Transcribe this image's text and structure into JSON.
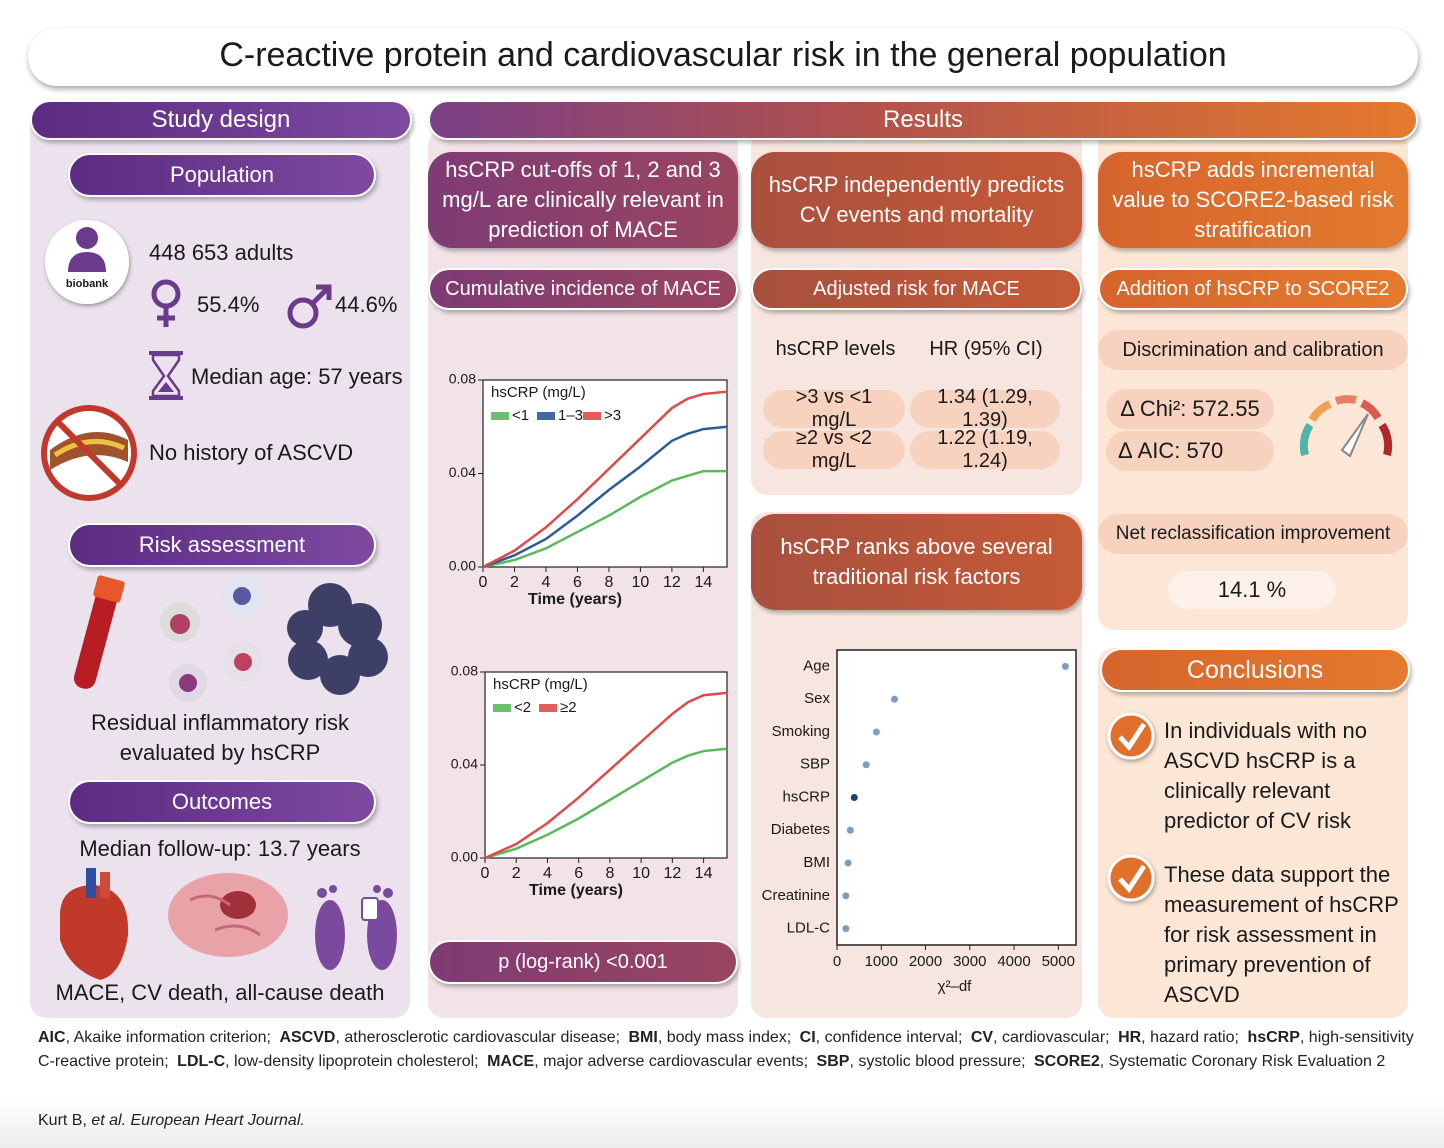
{
  "title": "C-reactive protein and cardiovascular risk in the general population",
  "study_design": {
    "header": "Study design",
    "population": {
      "header": "Population",
      "logo": "biobank",
      "adults": "448 653 adults",
      "female": "55.4%",
      "male": "44.6%",
      "median_age": "Median age: 57 years",
      "history": "No history of ASCVD"
    },
    "risk_assessment": {
      "header": "Risk assessment",
      "text": "Residual inflammatory risk evaluated by hsCRP"
    },
    "outcomes": {
      "header": "Outcomes",
      "follow_up": "Median follow-up: 13.7 years",
      "events": "MACE, CV death, all-cause death"
    }
  },
  "results": {
    "header": "Results",
    "cutoffs": {
      "header": "hsCRP cut-offs of 1, 2 and 3 mg/L are clinically relevant in prediction of MACE",
      "subheader": "Cumulative incidence of MACE",
      "p_value": "p (log-rank) <0.001"
    },
    "independent": {
      "header": "hsCRP independently predicts CV events and mortality",
      "subheader": "Adjusted risk for MACE",
      "table": {
        "columns": [
          "hsCRP levels",
          "HR (95% CI)"
        ],
        "rows": [
          [
            ">3 vs <1 mg/L",
            "1.34 (1.29, 1.39)"
          ],
          [
            "≥2 vs <2 mg/L",
            "1.22 (1.19, 1.24)"
          ]
        ]
      },
      "ranks_header": "hsCRP ranks above several traditional risk factors"
    },
    "incremental": {
      "header": "hsCRP adds incremental value to SCORE2-based risk stratification",
      "subheader": "Addition of hsCRP to SCORE2",
      "discrimination": "Discrimination and calibration",
      "chi2": "Δ Chi²: 572.55",
      "aic": "Δ AIC: 570",
      "nri_header": "Net reclassification improvement",
      "nri": "14.1 %"
    }
  },
  "conclusions": {
    "header": "Conclusions",
    "items": [
      "In individuals with no ASCVD hsCRP is a clinically relevant predictor of CV risk",
      "These data support the measurement of hsCRP for risk assessment in primary prevention of ASCVD"
    ]
  },
  "footnote": [
    {
      "abbr": "AIC",
      "text": ", Akaike information criterion;"
    },
    {
      "abbr": "ASCVD",
      "text": ", atherosclerotic cardiovascular disease;"
    },
    {
      "abbr": "BMI",
      "text": ", body mass index;"
    },
    {
      "abbr": "CI",
      "text": ", confidence interval;"
    },
    {
      "abbr": "CV",
      "text": ", cardiovascular;"
    },
    {
      "abbr": "HR",
      "text": ", hazard ratio;"
    },
    {
      "abbr": "hsCRP",
      "text": ", high-sensitivity C-reactive protein;"
    },
    {
      "abbr": "LDL-C",
      "text": ", low-density lipoprotein cholesterol;"
    },
    {
      "abbr": "MACE",
      "text": ", major adverse cardiovascular events;"
    },
    {
      "abbr": "SBP",
      "text": ", systolic blood pressure;"
    },
    {
      "abbr": "SCORE2",
      "text": ", Systematic Coronary Risk Evaluation 2"
    }
  ],
  "citation": {
    "authors": "Kurt B,",
    "journal": "et al. European Heart Journal."
  },
  "chart_data": [
    {
      "type": "line",
      "legend_title": "hsCRP (mg/L)",
      "x_label": "Time (years)",
      "x": [
        0,
        2,
        4,
        6,
        8,
        10,
        12,
        13,
        14,
        15.5
      ],
      "series": [
        {
          "name": "<1",
          "color": "#5cb85c",
          "values": [
            0,
            0.003,
            0.008,
            0.015,
            0.022,
            0.03,
            0.037,
            0.039,
            0.041,
            0.041
          ]
        },
        {
          "name": "1–3",
          "color": "#2c5a9a",
          "values": [
            0,
            0.005,
            0.012,
            0.022,
            0.033,
            0.043,
            0.054,
            0.057,
            0.059,
            0.06
          ]
        },
        {
          "name": ">3",
          "color": "#e04a4a",
          "values": [
            0,
            0.007,
            0.017,
            0.029,
            0.042,
            0.055,
            0.068,
            0.072,
            0.074,
            0.075
          ]
        }
      ],
      "xlim": [
        0,
        15.5
      ],
      "xticks": [
        0,
        2,
        4,
        6,
        8,
        10,
        12,
        14
      ],
      "ylim": [
        0,
        0.08
      ],
      "yticks": [
        {
          "value": 0,
          "label": "0.00"
        },
        {
          "value": 0.04,
          "label": "0.04"
        },
        {
          "value": 0.08,
          "label": "0.08"
        }
      ]
    },
    {
      "type": "line",
      "legend_title": "hsCRP (mg/L)",
      "x_label": "Time (years)",
      "x": [
        0,
        2,
        4,
        6,
        8,
        10,
        12,
        13,
        14,
        15.5
      ],
      "series": [
        {
          "name": "<2",
          "color": "#5cb85c",
          "values": [
            0,
            0.004,
            0.01,
            0.017,
            0.025,
            0.033,
            0.041,
            0.044,
            0.046,
            0.047
          ]
        },
        {
          "name": "≥2",
          "color": "#e04a4a",
          "values": [
            0,
            0.006,
            0.015,
            0.026,
            0.038,
            0.05,
            0.062,
            0.067,
            0.07,
            0.071
          ]
        }
      ],
      "xlim": [
        0,
        15.5
      ],
      "xticks": [
        0,
        2,
        4,
        6,
        8,
        10,
        12,
        14
      ],
      "ylim": [
        0,
        0.08
      ],
      "yticks": [
        {
          "value": 0,
          "label": "0.00"
        },
        {
          "value": 0.04,
          "label": "0.04"
        },
        {
          "value": 0.08,
          "label": "0.08"
        }
      ]
    },
    {
      "type": "dot",
      "x_label": "χ²–df",
      "categories": [
        "Age",
        "Sex",
        "Smoking",
        "SBP",
        "hsCRP",
        "Diabetes",
        "BMI",
        "Creatinine",
        "LDL-C"
      ],
      "values": [
        5160,
        1300,
        890,
        660,
        390,
        300,
        250,
        200,
        200
      ],
      "colors": [
        "#7a9cc6",
        "#7a9cc6",
        "#7a9cc6",
        "#7a9cc6",
        "#1f3f73",
        "#7a9cc6",
        "#7a9cc6",
        "#7a9cc6",
        "#7a9cc6"
      ],
      "xlim": [
        0,
        5400
      ],
      "xticks": [
        0,
        1000,
        2000,
        3000,
        4000,
        5000
      ]
    }
  ]
}
